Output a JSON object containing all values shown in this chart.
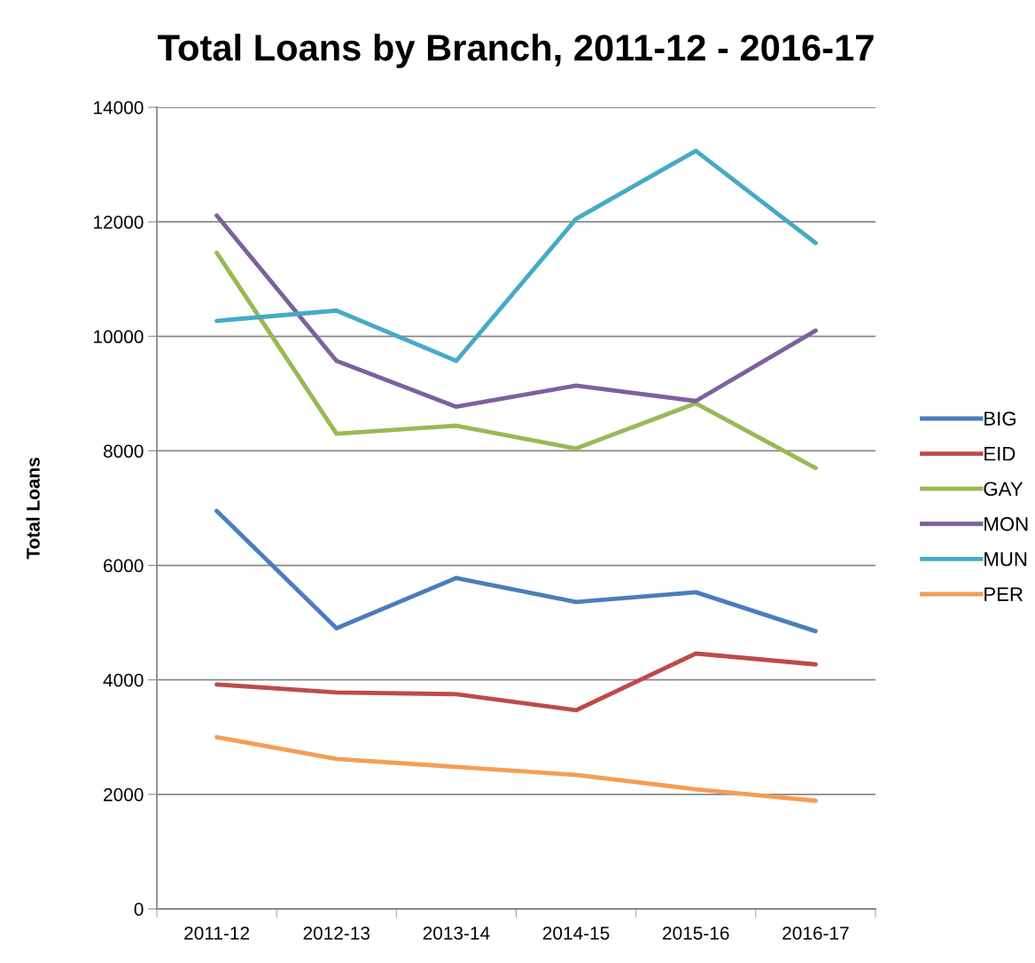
{
  "chart_data": {
    "type": "line",
    "title": "Total Loans by Branch, 2011-12 - 2016-17",
    "ylabel": "Total Loans",
    "categories": [
      "2011-12",
      "2012-13",
      "2013-14",
      "2014-15",
      "2015-16",
      "2016-17"
    ],
    "series": [
      {
        "name": "BIG",
        "color": "#4a7ebb",
        "values": [
          6950,
          4900,
          5780,
          5360,
          5530,
          4850
        ]
      },
      {
        "name": "EID",
        "color": "#be4b48",
        "values": [
          3920,
          3780,
          3750,
          3470,
          4460,
          4270
        ]
      },
      {
        "name": "GAY",
        "color": "#98b954",
        "values": [
          11460,
          8300,
          8440,
          8040,
          8830,
          7700
        ]
      },
      {
        "name": "MON",
        "color": "#7d60a0",
        "values": [
          12110,
          9570,
          8770,
          9140,
          8870,
          10100
        ]
      },
      {
        "name": "MUN",
        "color": "#46aac5",
        "values": [
          10270,
          10450,
          9570,
          12050,
          13240,
          11630
        ]
      },
      {
        "name": "PER",
        "color": "#f59d56",
        "values": [
          3000,
          2620,
          2480,
          2340,
          2090,
          1890
        ]
      }
    ],
    "ylim": [
      0,
      14000
    ],
    "yticks": [
      0,
      2000,
      4000,
      6000,
      8000,
      10000,
      12000,
      14000
    ],
    "grid": "y",
    "legend": "right",
    "marker": "none",
    "line_style": "solid"
  }
}
